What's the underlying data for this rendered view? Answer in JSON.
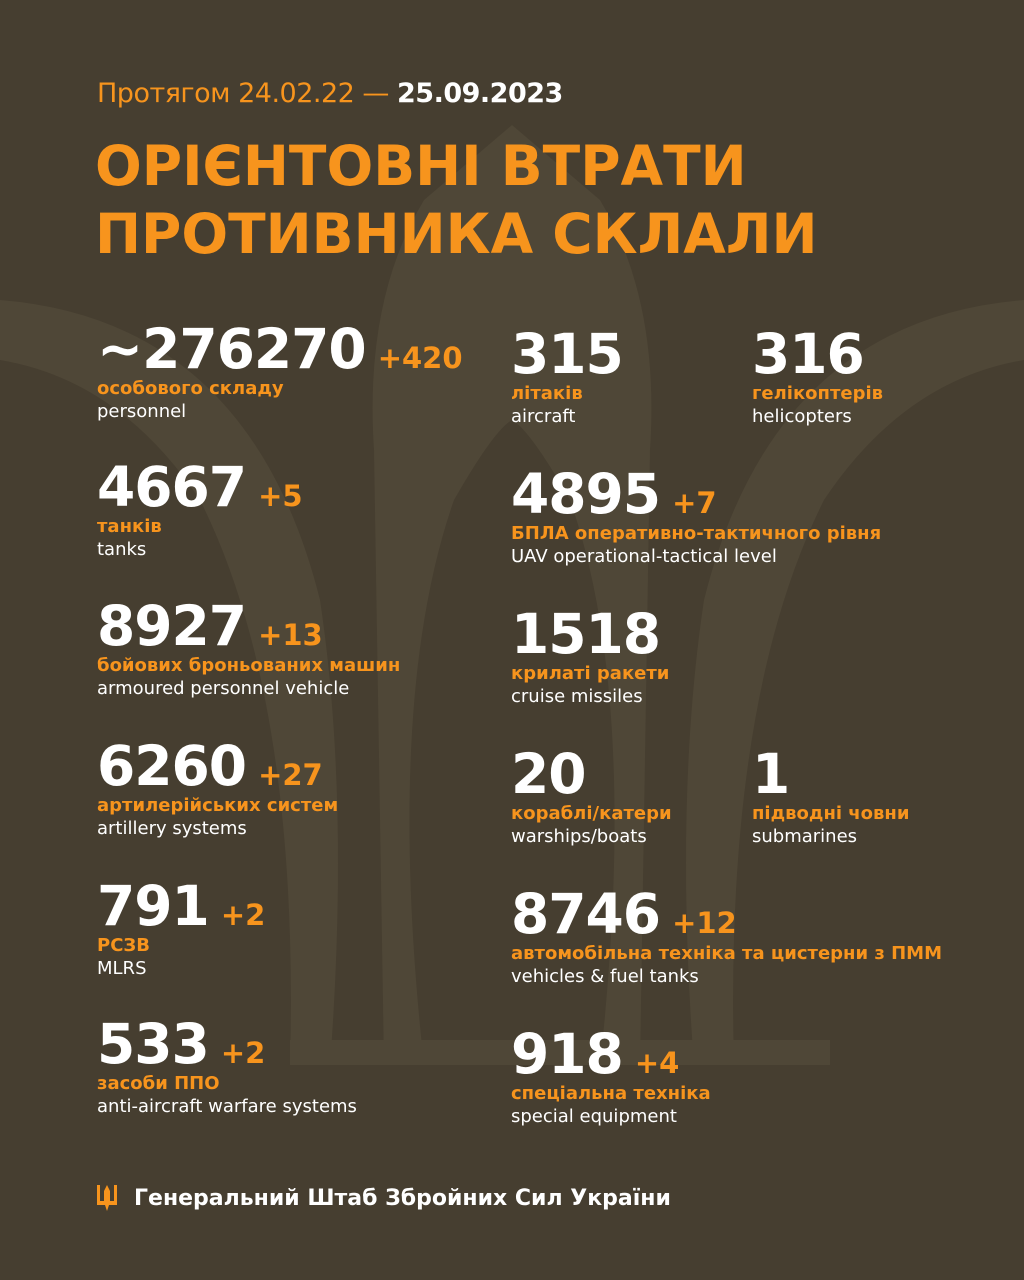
{
  "header": {
    "period_prefix": "Протягом 24.02.22 —",
    "period_end": "25.09.2023",
    "title_line1": "ОРІЄНТОВНІ ВТРАТИ",
    "title_line2": "ПРОТИВНИКА СКЛАЛИ"
  },
  "left": [
    {
      "value": "~276270",
      "delta": "+420",
      "ua": "особового складу",
      "en": "personnel"
    },
    {
      "value": "4667",
      "delta": "+5",
      "ua": "танків",
      "en": "tanks"
    },
    {
      "value": "8927",
      "delta": "+13",
      "ua": "бойових броньованих машин",
      "en": "armoured personnel vehicle"
    },
    {
      "value": "6260",
      "delta": "+27",
      "ua": "артилерійських систем",
      "en": "artillery systems"
    },
    {
      "value": "791",
      "delta": "+2",
      "ua": "РСЗВ",
      "en": "MLRS"
    },
    {
      "value": "533",
      "delta": "+2",
      "ua": "засоби ППО",
      "en": "anti-aircraft warfare systems"
    }
  ],
  "right": [
    {
      "value": "315",
      "delta": "",
      "ua": "літаків",
      "en": "aircraft"
    },
    {
      "value": "316",
      "delta": "",
      "ua": "гелікоптерів",
      "en": "helicopters"
    },
    {
      "value": "4895",
      "delta": "+7",
      "ua": "БПЛА оперативно-тактичного рівня",
      "en": "UAV operational-tactical level"
    },
    {
      "value": "1518",
      "delta": "",
      "ua": "крилаті ракети",
      "en": "cruise missiles"
    },
    {
      "value": "20",
      "delta": "",
      "ua": "кораблі/катери",
      "en": "warships/boats"
    },
    {
      "value": "1",
      "delta": "",
      "ua": "підводні човни",
      "en": "submarines"
    },
    {
      "value": "8746",
      "delta": "+12",
      "ua": "автомобільна техніка та цистерни з ПММ",
      "en": "vehicles & fuel tanks"
    },
    {
      "value": "918",
      "delta": "+4",
      "ua": "спеціальна техніка",
      "en": "special equipment"
    }
  ],
  "footer": {
    "text": "Генеральний Штаб Збройних Сил України",
    "emblem_icon": "trident-icon"
  },
  "colors": {
    "background": "#463e30",
    "accent": "#f7941d",
    "text": "#ffffff",
    "watermark": "#524a3a"
  }
}
